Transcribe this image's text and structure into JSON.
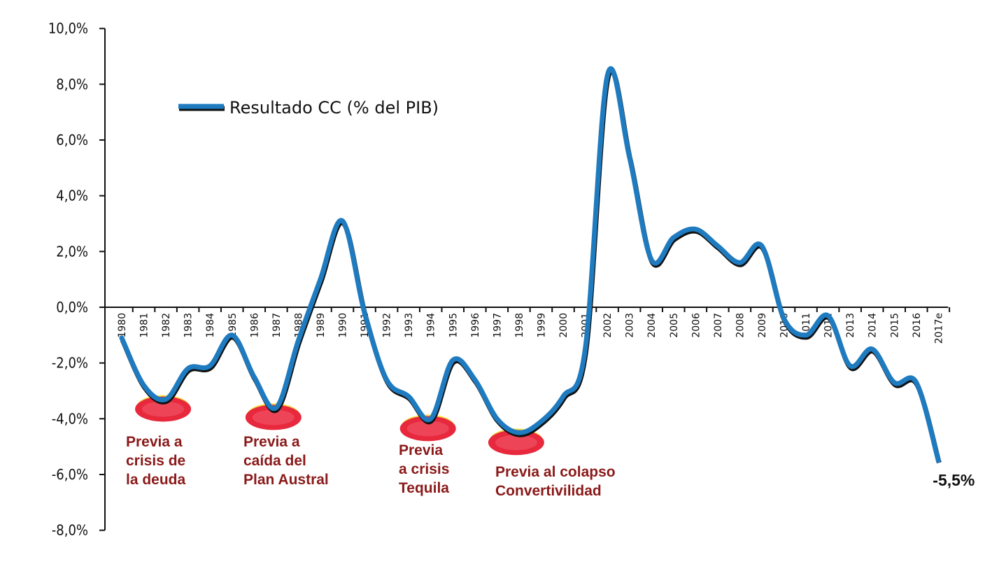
{
  "chart_data": {
    "type": "line",
    "title": "",
    "xlabel": "",
    "ylabel": "",
    "ylim": [
      -8,
      10
    ],
    "y_ticks": [
      "10,0%",
      "8,0%",
      "6,0%",
      "4,0%",
      "2,0%",
      "0,0%",
      "-2,0%",
      "-4,0%",
      "-6,0%",
      "-8,0%"
    ],
    "y_tick_values": [
      10,
      8,
      6,
      4,
      2,
      0,
      -2,
      -4,
      -6,
      -8
    ],
    "grid": false,
    "legend_position": "top-left",
    "categories": [
      "1980",
      "1981",
      "1982",
      "1983",
      "1984",
      "1985",
      "1986",
      "1987",
      "1988",
      "1989",
      "1990",
      "1991",
      "1992",
      "1993",
      "1994",
      "1995",
      "1996",
      "1997",
      "1998",
      "1999",
      "2000",
      "2001",
      "2002",
      "2003",
      "2004",
      "2005",
      "2006",
      "2007",
      "2008",
      "2009",
      "2010",
      "2011",
      "2012",
      "2013",
      "2014",
      "2015",
      "2016",
      "2017e"
    ],
    "series": [
      {
        "name": "Resultado CC (% del PIB)",
        "color": "#1f7bc0",
        "values": [
          -1.1,
          -2.8,
          -3.3,
          -2.2,
          -2.1,
          -1.0,
          -2.5,
          -3.6,
          -1.2,
          1.0,
          3.1,
          -0.2,
          -2.6,
          -3.2,
          -4.0,
          -1.9,
          -2.6,
          -4.0,
          -4.5,
          -4.1,
          -3.2,
          -1.5,
          8.3,
          5.4,
          1.7,
          2.5,
          2.8,
          2.2,
          1.6,
          2.2,
          -0.4,
          -1.0,
          -0.3,
          -2.1,
          -1.5,
          -2.7,
          -2.7,
          -5.5
        ]
      }
    ],
    "data_labels": [
      {
        "category": "2017e",
        "text": "-5,5%"
      }
    ],
    "highlight_color": "#e8283c",
    "highlights": [
      {
        "category": "1982",
        "lines": [
          "Previa a",
          "crisis de",
          "la deuda"
        ]
      },
      {
        "category": "1987",
        "lines": [
          "Previa a",
          "caída del",
          "Plan Austral"
        ]
      },
      {
        "category": "1994",
        "lines": [
          "Previa",
          "a crisis",
          "Tequila"
        ]
      },
      {
        "category": "1998",
        "lines": [
          "Previa al colapso",
          "Convertivilidad"
        ]
      }
    ],
    "annotation_color": "#8b1a1a"
  }
}
